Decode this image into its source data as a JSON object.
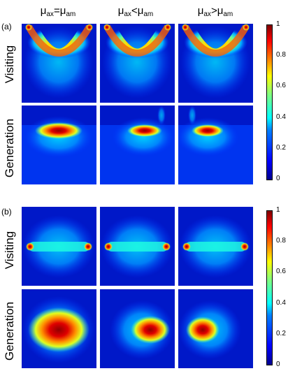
{
  "column_headers": [
    {
      "mu_a": "μ",
      "sub_a": "ax",
      "op": "=",
      "mu_b": "μ",
      "sub_b": "am"
    },
    {
      "mu_a": "μ",
      "sub_a": "ax",
      "op": "<",
      "mu_b": "μ",
      "sub_b": "am"
    },
    {
      "mu_a": "μ",
      "sub_a": "ax",
      "op": ">",
      "mu_b": "μ",
      "sub_b": "am"
    }
  ],
  "parts": [
    {
      "label": "(a)",
      "rows": [
        "Visiting",
        "Generation"
      ]
    },
    {
      "label": "(b)",
      "rows": [
        "Visiting",
        "Generation"
      ]
    }
  ],
  "colorbar": {
    "ticks": [
      "0",
      "0.2",
      "0.4",
      "0.6",
      "0.8",
      "1"
    ],
    "colormap": "jet"
  }
}
